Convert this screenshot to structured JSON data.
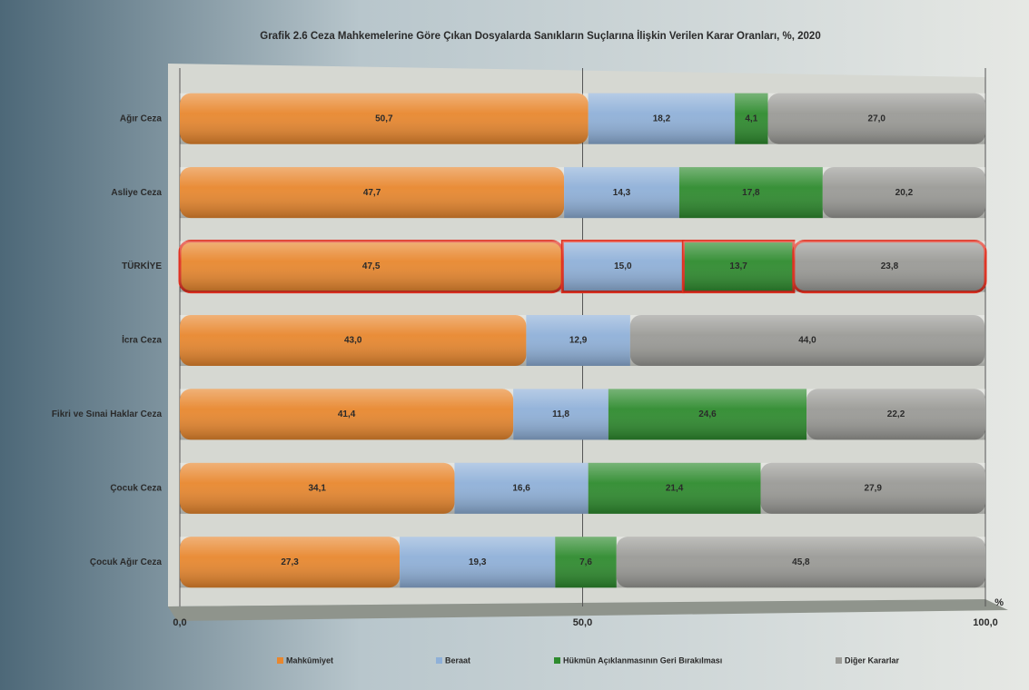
{
  "chart_data": {
    "type": "stacked_barh",
    "title": "Grafik 2.6 Ceza Mahkemelerine Göre Çıkan Dosyalarda Sanıkların Suçlarına İlişkin Verilen Karar Oranları, %, 2020",
    "xlabel": "%",
    "categories": [
      "Ağır Ceza",
      "Asliye Ceza",
      "TÜRKİYE",
      "İcra Ceza",
      "Fikri ve Sınai Haklar Ceza",
      "Çocuk Ceza",
      "Çocuk Ağır Ceza"
    ],
    "series": [
      {
        "name": "Mahkûmiyet",
        "color": "#e8872e",
        "values": [
          50.7,
          47.7,
          47.5,
          43.0,
          41.4,
          34.1,
          27.3
        ],
        "value_labels": [
          "50,7",
          "47,7",
          "47,5",
          "43,0",
          "41,4",
          "34,1",
          "27,3"
        ]
      },
      {
        "name": "Beraat",
        "color": "#8fb0d8",
        "values": [
          18.2,
          14.3,
          15.0,
          12.9,
          11.8,
          16.6,
          19.3
        ],
        "value_labels": [
          "18,2",
          "14,3",
          "15,0",
          "12,9",
          "11,8",
          "16,6",
          "19,3"
        ]
      },
      {
        "name": "Hükmün Açıklanmasının Geri Bırakılması",
        "color": "#2e8b2e",
        "values": [
          4.1,
          17.8,
          13.7,
          null,
          24.6,
          21.4,
          7.6
        ],
        "value_labels": [
          "4,1",
          "17,8",
          "13,7",
          null,
          "24,6",
          "21,4",
          "7,6"
        ]
      },
      {
        "name": "Diğer Kararlar",
        "color": "#9a9a96",
        "values": [
          27.0,
          20.2,
          23.8,
          44.0,
          22.2,
          27.9,
          45.8
        ],
        "value_labels": [
          "27,0",
          "20,2",
          "23,8",
          "44,0",
          "22,2",
          "27,9",
          "45,8"
        ]
      }
    ],
    "xlim": [
      0,
      100
    ],
    "xticks": [
      {
        "value": 0,
        "label": "0,0"
      },
      {
        "value": 50,
        "label": "50,0"
      },
      {
        "value": 100,
        "label": "100,0"
      }
    ],
    "grid": true,
    "highlight": 2,
    "highlight_color": "#e03020",
    "legend": "bottom"
  }
}
